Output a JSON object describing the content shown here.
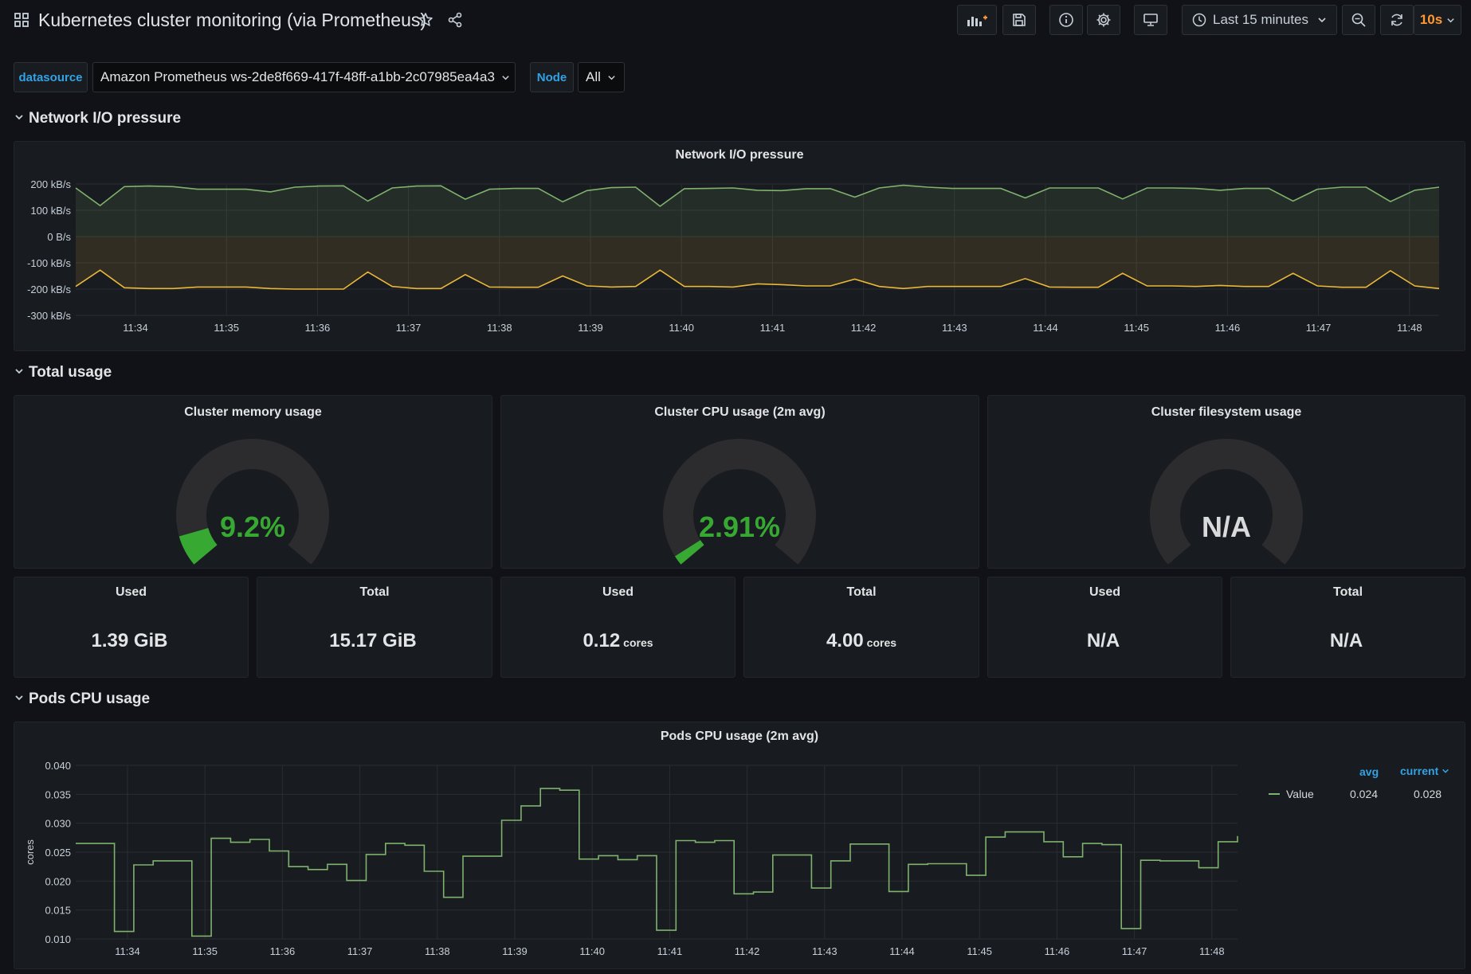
{
  "header": {
    "title": "Kubernetes cluster monitoring (via Prometheus)",
    "time_range": "Last 15 minutes",
    "refresh_interval": "10s"
  },
  "variables": {
    "datasource": {
      "label": "datasource",
      "value": "Amazon Prometheus ws-2de8f669-417f-48ff-a1bb-2c07985ea4a3"
    },
    "node": {
      "label": "Node",
      "value": "All"
    }
  },
  "rows": {
    "network": "Network I/O pressure",
    "total": "Total usage",
    "pods": "Pods CPU usage"
  },
  "colors": {
    "background": "#111217",
    "panel": "#181b1f",
    "green": "#7eb26d",
    "yellow": "#eab839",
    "gauge_green": "#37a933",
    "gauge_orange": "#e07d28",
    "gauge_red": "#e02f44",
    "accent_blue": "#33a2e5",
    "accent_orange": "#ff9830"
  },
  "panels": {
    "memory_gauge": {
      "title": "Cluster memory usage",
      "value": "9.2%",
      "fraction": 0.092
    },
    "cpu_gauge": {
      "title": "Cluster CPU usage (2m avg)",
      "value": "2.91%",
      "fraction": 0.0291
    },
    "fs_gauge": {
      "title": "Cluster filesystem usage",
      "value": "N/A",
      "fraction": null
    },
    "mem_used": {
      "title": "Used",
      "value": "1.39 GiB",
      "unit": ""
    },
    "mem_total": {
      "title": "Total",
      "value": "15.17 GiB",
      "unit": ""
    },
    "cpu_used": {
      "title": "Used",
      "value": "0.12",
      "unit": "cores"
    },
    "cpu_total": {
      "title": "Total",
      "value": "4.00",
      "unit": "cores"
    },
    "fs_used": {
      "title": "Used",
      "value": "N/A",
      "unit": ""
    },
    "fs_total": {
      "title": "Total",
      "value": "N/A",
      "unit": ""
    }
  },
  "network_panel_title": "Network I/O pressure",
  "pods_panel_title": "Pods CPU usage (2m avg)",
  "legend": {
    "avg_label": "avg",
    "current_label": "current",
    "series_name": "Value",
    "avg": "0.024",
    "current": "0.028"
  },
  "chart_data": [
    {
      "type": "area",
      "title": "Network I/O pressure",
      "x_ticks": [
        "11:34",
        "11:35",
        "11:36",
        "11:37",
        "11:38",
        "11:39",
        "11:40",
        "11:41",
        "11:42",
        "11:43",
        "11:44",
        "11:45",
        "11:46",
        "11:47",
        "11:48"
      ],
      "y_ticks": [
        "200 kB/s",
        "100 kB/s",
        "0 B/s",
        "-100 kB/s",
        "-200 kB/s",
        "-300 kB/s"
      ],
      "ylim": [
        -300,
        200
      ],
      "y_unit": "kB/s",
      "grid": true,
      "series": [
        {
          "color": "#7eb26d",
          "values": [
            185,
            118,
            190,
            192,
            190,
            180,
            180,
            180,
            170,
            188,
            192,
            193,
            135,
            185,
            192,
            193,
            142,
            180,
            183,
            183,
            132,
            175,
            186,
            188,
            115,
            182,
            183,
            185,
            176,
            175,
            182,
            182,
            150,
            185,
            195,
            188,
            183,
            183,
            183,
            147,
            185,
            185,
            185,
            143,
            185,
            185,
            183,
            176,
            183,
            183,
            135,
            180,
            188,
            188,
            133,
            176,
            188
          ]
        },
        {
          "color": "#eab839",
          "values": [
            -190,
            -128,
            -195,
            -198,
            -198,
            -192,
            -192,
            -192,
            -198,
            -200,
            -200,
            -200,
            -135,
            -190,
            -198,
            -198,
            -145,
            -192,
            -193,
            -193,
            -150,
            -188,
            -192,
            -190,
            -128,
            -190,
            -190,
            -192,
            -180,
            -183,
            -188,
            -188,
            -162,
            -190,
            -198,
            -190,
            -190,
            -190,
            -190,
            -160,
            -192,
            -193,
            -193,
            -140,
            -188,
            -188,
            -190,
            -186,
            -190,
            -190,
            -140,
            -188,
            -193,
            -193,
            -130,
            -188,
            -198
          ]
        }
      ]
    },
    {
      "type": "line",
      "title": "Pods CPU usage (2m avg)",
      "ylabel": "cores",
      "x_ticks": [
        "11:34",
        "11:35",
        "11:36",
        "11:37",
        "11:38",
        "11:39",
        "11:40",
        "11:41",
        "11:42",
        "11:43",
        "11:44",
        "11:45",
        "11:46",
        "11:47",
        "11:48"
      ],
      "y_ticks": [
        "0.040",
        "0.035",
        "0.030",
        "0.025",
        "0.020",
        "0.015",
        "0.010"
      ],
      "ylim": [
        0.01,
        0.04
      ],
      "step": true,
      "grid": true,
      "series": [
        {
          "name": "Value",
          "color": "#7eb26d",
          "values": [
            0.0265,
            0.0265,
            0.0113,
            0.0228,
            0.0235,
            0.0235,
            0.0105,
            0.0274,
            0.0267,
            0.0272,
            0.0252,
            0.0225,
            0.022,
            0.0229,
            0.0201,
            0.0246,
            0.0265,
            0.0262,
            0.0217,
            0.0172,
            0.0243,
            0.0243,
            0.0305,
            0.033,
            0.036,
            0.0357,
            0.0238,
            0.0244,
            0.0237,
            0.0244,
            0.0115,
            0.027,
            0.0267,
            0.027,
            0.0178,
            0.0181,
            0.0245,
            0.0245,
            0.0188,
            0.0235,
            0.0264,
            0.0264,
            0.0182,
            0.0229,
            0.023,
            0.023,
            0.021,
            0.0276,
            0.0285,
            0.0285,
            0.0268,
            0.0242,
            0.0265,
            0.0263,
            0.0118,
            0.0236,
            0.0235,
            0.0235,
            0.0223,
            0.0268,
            0.0278
          ]
        }
      ]
    }
  ]
}
